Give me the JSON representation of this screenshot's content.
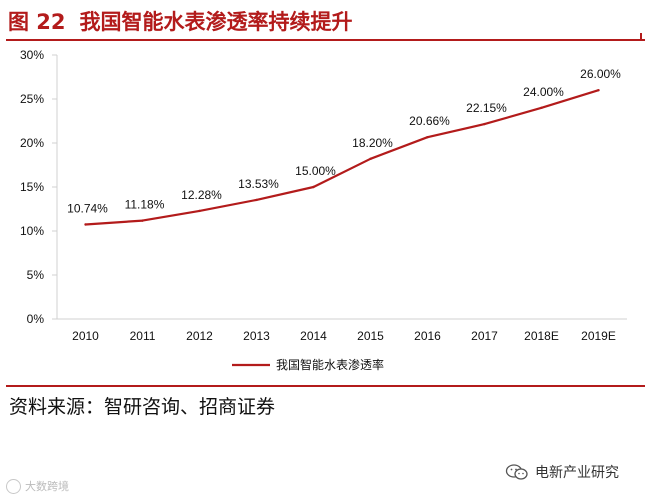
{
  "figure": {
    "number": "图 22",
    "title": "我国智能水表渗透率持续提升"
  },
  "source": "资料来源：智研咨询、招商证券",
  "watermarks": {
    "left": "大数跨境",
    "right": "电新产业研究"
  },
  "colors": {
    "accent": "#b31b1b",
    "line": "#b31b1b",
    "axis": "#d0d0d0",
    "text": "#111111"
  },
  "chart_data": {
    "type": "line",
    "categories": [
      "2010",
      "2011",
      "2012",
      "2013",
      "2014",
      "2015",
      "2016",
      "2017",
      "2018E",
      "2019E"
    ],
    "series": [
      {
        "name": "我国智能水表渗透率",
        "values": [
          10.74,
          11.18,
          12.28,
          13.53,
          15.0,
          18.2,
          20.66,
          22.15,
          24.0,
          26.0
        ],
        "labels": [
          "10.74%",
          "11.18%",
          "12.28%",
          "13.53%",
          "15.00%",
          "18.20%",
          "20.66%",
          "22.15%",
          "24.00%",
          "26.00%"
        ]
      }
    ],
    "ylim": [
      0,
      30
    ],
    "yticks": [
      0,
      5,
      10,
      15,
      20,
      25,
      30
    ],
    "ytick_labels": [
      "0%",
      "5%",
      "10%",
      "15%",
      "20%",
      "25%",
      "30%"
    ],
    "xlabel": "",
    "ylabel": "",
    "grid": false,
    "legend_position": "bottom"
  }
}
